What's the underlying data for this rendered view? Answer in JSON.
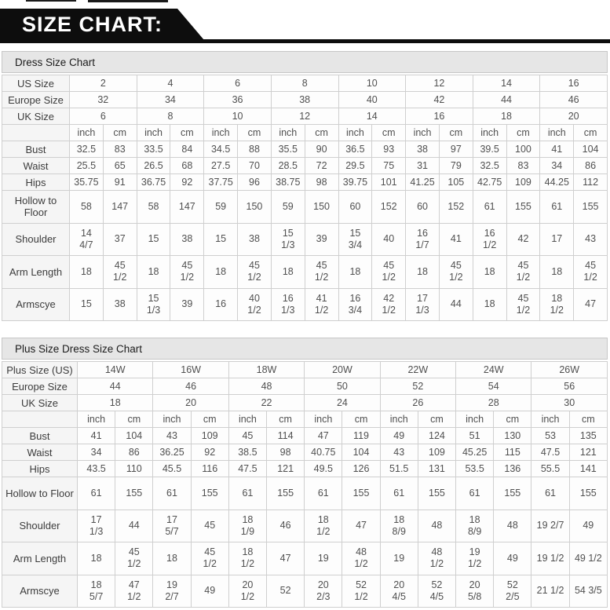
{
  "banner": {
    "title": "SIZE CHART:",
    "bg": "#0d0d0d",
    "text_color": "#ffffff"
  },
  "tables": [
    {
      "title": "Dress Size Chart",
      "label_col_width": 86,
      "pairs": 8,
      "units": [
        "inch",
        "cm"
      ],
      "size_rows": [
        {
          "label": "US Size",
          "values": [
            "2",
            "4",
            "6",
            "8",
            "10",
            "12",
            "14",
            "16"
          ]
        },
        {
          "label": "Europe Size",
          "values": [
            "32",
            "34",
            "36",
            "38",
            "40",
            "42",
            "44",
            "46"
          ]
        },
        {
          "label": "UK Size",
          "values": [
            "6",
            "8",
            "10",
            "12",
            "14",
            "16",
            "18",
            "20"
          ]
        }
      ],
      "measure_rows": [
        {
          "label": "Bust",
          "tall": false,
          "values": [
            "32.5",
            "83",
            "33.5",
            "84",
            "34.5",
            "88",
            "35.5",
            "90",
            "36.5",
            "93",
            "38",
            "97",
            "39.5",
            "100",
            "41",
            "104"
          ]
        },
        {
          "label": "Waist",
          "tall": false,
          "values": [
            "25.5",
            "65",
            "26.5",
            "68",
            "27.5",
            "70",
            "28.5",
            "72",
            "29.5",
            "75",
            "31",
            "79",
            "32.5",
            "83",
            "34",
            "86"
          ]
        },
        {
          "label": "Hips",
          "tall": false,
          "values": [
            "35.75",
            "91",
            "36.75",
            "92",
            "37.75",
            "96",
            "38.75",
            "98",
            "39.75",
            "101",
            "41.25",
            "105",
            "42.75",
            "109",
            "44.25",
            "112"
          ]
        },
        {
          "label": "Hollow to Floor",
          "tall": true,
          "values": [
            "58",
            "147",
            "58",
            "147",
            "59",
            "150",
            "59",
            "150",
            "60",
            "152",
            "60",
            "152",
            "61",
            "155",
            "61",
            "155"
          ]
        },
        {
          "label": "Shoulder",
          "tall": true,
          "values": [
            "14\n4/7",
            "37",
            "15",
            "38",
            "15",
            "38",
            "15\n1/3",
            "39",
            "15\n3/4",
            "40",
            "16\n1/7",
            "41",
            "16\n1/2",
            "42",
            "17",
            "43"
          ]
        },
        {
          "label": "Arm Length",
          "tall": true,
          "values": [
            "18",
            "45\n1/2",
            "18",
            "45\n1/2",
            "18",
            "45\n1/2",
            "18",
            "45\n1/2",
            "18",
            "45\n1/2",
            "18",
            "45\n1/2",
            "18",
            "45\n1/2",
            "18",
            "45\n1/2"
          ]
        },
        {
          "label": "Armscye",
          "tall": true,
          "values": [
            "15",
            "38",
            "15\n1/3",
            "39",
            "16",
            "40\n1/2",
            "16\n1/3",
            "41\n1/2",
            "16\n3/4",
            "42\n1/2",
            "17\n1/3",
            "44",
            "18",
            "45\n1/2",
            "18\n1/2",
            "47"
          ]
        }
      ]
    },
    {
      "title": "Plus Size Dress Size Chart",
      "label_col_width": 96,
      "pairs": 7,
      "units": [
        "inch",
        "cm"
      ],
      "size_rows": [
        {
          "label": "Plus Size (US)",
          "values": [
            "14W",
            "16W",
            "18W",
            "20W",
            "22W",
            "24W",
            "26W"
          ]
        },
        {
          "label": "Europe Size",
          "values": [
            "44",
            "46",
            "48",
            "50",
            "52",
            "54",
            "56"
          ]
        },
        {
          "label": "UK Size",
          "values": [
            "18",
            "20",
            "22",
            "24",
            "26",
            "28",
            "30"
          ]
        }
      ],
      "measure_rows": [
        {
          "label": "Bust",
          "tall": false,
          "values": [
            "41",
            "104",
            "43",
            "109",
            "45",
            "114",
            "47",
            "119",
            "49",
            "124",
            "51",
            "130",
            "53",
            "135"
          ]
        },
        {
          "label": "Waist",
          "tall": false,
          "values": [
            "34",
            "86",
            "36.25",
            "92",
            "38.5",
            "98",
            "40.75",
            "104",
            "43",
            "109",
            "45.25",
            "115",
            "47.5",
            "121"
          ]
        },
        {
          "label": "Hips",
          "tall": false,
          "values": [
            "43.5",
            "110",
            "45.5",
            "116",
            "47.5",
            "121",
            "49.5",
            "126",
            "51.5",
            "131",
            "53.5",
            "136",
            "55.5",
            "141"
          ]
        },
        {
          "label": "Hollow to Floor",
          "tall": true,
          "values": [
            "61",
            "155",
            "61",
            "155",
            "61",
            "155",
            "61",
            "155",
            "61",
            "155",
            "61",
            "155",
            "61",
            "155"
          ]
        },
        {
          "label": "Shoulder",
          "tall": true,
          "values": [
            "17\n1/3",
            "44",
            "17\n5/7",
            "45",
            "18\n1/9",
            "46",
            "18\n1/2",
            "47",
            "18\n8/9",
            "48",
            "18\n8/9",
            "48",
            "19 2/7",
            "49"
          ]
        },
        {
          "label": "Arm Length",
          "tall": true,
          "values": [
            "18",
            "45\n1/2",
            "18",
            "45\n1/2",
            "18\n1/2",
            "47",
            "19",
            "48\n1/2",
            "19",
            "48\n1/2",
            "19\n1/2",
            "49",
            "19 1/2",
            "49 1/2"
          ]
        },
        {
          "label": "Armscye",
          "tall": true,
          "values": [
            "18\n5/7",
            "47\n1/2",
            "19\n2/7",
            "49",
            "20\n1/2",
            "52",
            "20\n2/3",
            "52\n1/2",
            "20\n4/5",
            "52\n4/5",
            "20\n5/8",
            "52\n2/5",
            "21 1/2",
            "54 3/5"
          ]
        }
      ]
    }
  ]
}
